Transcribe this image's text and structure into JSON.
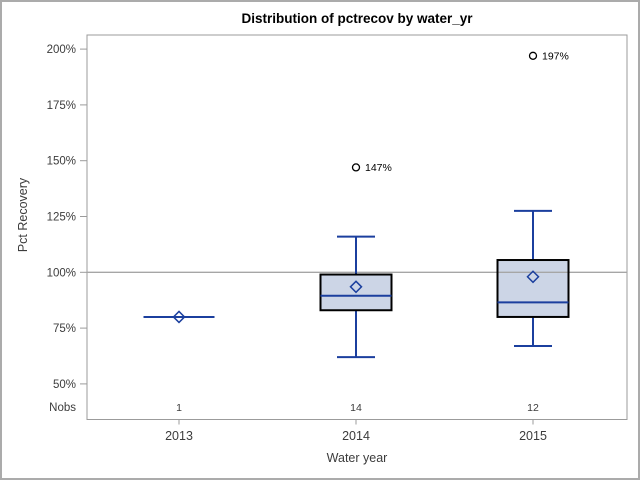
{
  "window": {
    "background": "#ffffff",
    "border_color": "#ababab"
  },
  "chart_data": {
    "type": "boxplot",
    "title": "Distribution of pctrecov by water_yr",
    "xlabel": "Water year",
    "ylabel": "Pct Recovery",
    "ylim": [
      50,
      200
    ],
    "grid": false,
    "legend": null,
    "reference_line": 100,
    "y_ticks": [
      {
        "label": "200%",
        "value": 200
      },
      {
        "label": "175%",
        "value": 175
      },
      {
        "label": "150%",
        "value": 150
      },
      {
        "label": "125%",
        "value": 125
      },
      {
        "label": "100%",
        "value": 100
      },
      {
        "label": "75%",
        "value": 75
      },
      {
        "label": "50%",
        "value": 50
      }
    ],
    "nobs_row_label": "Nobs",
    "categories": [
      "2013",
      "2014",
      "2015"
    ],
    "series": [
      {
        "category": "2013",
        "nobs": "1",
        "mean": 80,
        "median": 80,
        "q1": 80,
        "q3": 80,
        "whisker_low": 80,
        "whisker_high": 80,
        "outliers": []
      },
      {
        "category": "2014",
        "nobs": "14",
        "mean": 93.5,
        "median": 89.5,
        "q1": 83,
        "q3": 99,
        "whisker_low": 62,
        "whisker_high": 116,
        "outliers": [
          {
            "value": 147,
            "label": "147%"
          }
        ]
      },
      {
        "category": "2015",
        "nobs": "12",
        "mean": 98,
        "median": 86.5,
        "q1": 80,
        "q3": 105.5,
        "whisker_low": 67,
        "whisker_high": 127.5,
        "outliers": [
          {
            "value": 197,
            "label": "197%"
          }
        ]
      }
    ],
    "colors": {
      "box_fill": "#ccd5e6",
      "box_border": "#000000",
      "line_blue": "#1b3f9e",
      "reference_line": "#a6a6a6",
      "frame": "#9b9b9b",
      "axis_text": "#3c3c3c",
      "outlier": "#000000",
      "title_text": "#000000"
    }
  }
}
